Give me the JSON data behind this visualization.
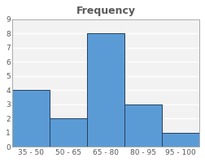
{
  "categories": [
    "35 - 50",
    "50 - 65",
    "65 - 80",
    "80 - 95",
    "95 - 100"
  ],
  "values": [
    4,
    2,
    8,
    3,
    1
  ],
  "bar_color": "#5B9BD5",
  "bar_edgecolor": "#243F60",
  "title": "Frequency",
  "title_fontsize": 9,
  "title_fontweight": "bold",
  "title_color": "#595959",
  "ylim": [
    0,
    9
  ],
  "yticks": [
    0,
    1,
    2,
    3,
    4,
    5,
    6,
    7,
    8,
    9
  ],
  "background_color": "#ffffff",
  "plot_bg_color": "#f2f2f2",
  "grid_color": "#ffffff",
  "tick_fontsize": 6.5,
  "bar_width": 1.0,
  "border_color": "#aaaaaa"
}
